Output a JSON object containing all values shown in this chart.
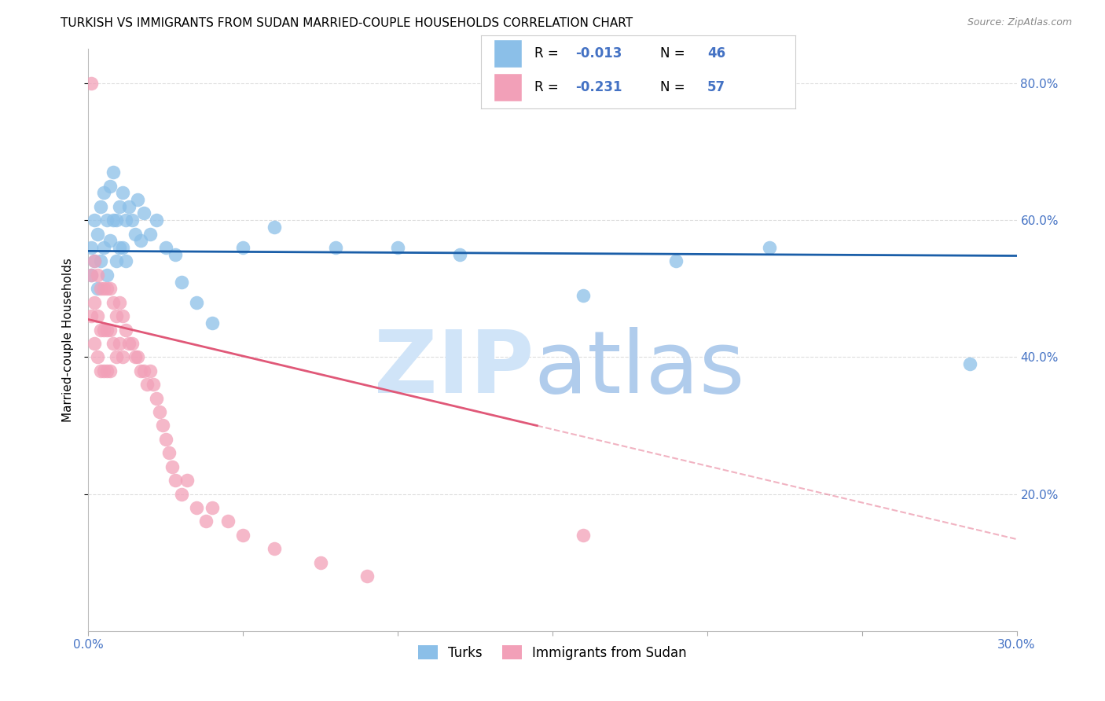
{
  "title": "TURKISH VS IMMIGRANTS FROM SUDAN MARRIED-COUPLE HOUSEHOLDS CORRELATION CHART",
  "source": "Source: ZipAtlas.com",
  "ylabel": "Married-couple Households",
  "legend_r": [
    -0.013,
    -0.231
  ],
  "legend_n": [
    46,
    57
  ],
  "color_turks": "#8BBFE8",
  "color_sudan": "#F2A0B8",
  "trendline_turks": "#1A5EA8",
  "trendline_sudan": "#E05878",
  "xlim": [
    0.0,
    0.3
  ],
  "ylim": [
    0.0,
    0.85
  ],
  "xticks": [
    0.0,
    0.05,
    0.1,
    0.15,
    0.2,
    0.25,
    0.3
  ],
  "yticks_right": [
    0.2,
    0.4,
    0.6,
    0.8
  ],
  "ytick_right_labels": [
    "20.0%",
    "40.0%",
    "60.0%",
    "80.0%"
  ],
  "turks_x": [
    0.001,
    0.001,
    0.002,
    0.002,
    0.003,
    0.003,
    0.004,
    0.004,
    0.005,
    0.005,
    0.006,
    0.006,
    0.007,
    0.007,
    0.008,
    0.008,
    0.009,
    0.009,
    0.01,
    0.01,
    0.011,
    0.011,
    0.012,
    0.012,
    0.013,
    0.014,
    0.015,
    0.016,
    0.017,
    0.018,
    0.02,
    0.022,
    0.025,
    0.028,
    0.03,
    0.035,
    0.04,
    0.05,
    0.06,
    0.08,
    0.1,
    0.12,
    0.16,
    0.19,
    0.22,
    0.285
  ],
  "turks_y": [
    0.56,
    0.52,
    0.6,
    0.54,
    0.58,
    0.5,
    0.62,
    0.54,
    0.64,
    0.56,
    0.6,
    0.52,
    0.65,
    0.57,
    0.67,
    0.6,
    0.6,
    0.54,
    0.62,
    0.56,
    0.64,
    0.56,
    0.6,
    0.54,
    0.62,
    0.6,
    0.58,
    0.63,
    0.57,
    0.61,
    0.58,
    0.6,
    0.56,
    0.55,
    0.51,
    0.48,
    0.45,
    0.56,
    0.59,
    0.56,
    0.56,
    0.55,
    0.49,
    0.54,
    0.56,
    0.39
  ],
  "sudan_x": [
    0.001,
    0.001,
    0.001,
    0.002,
    0.002,
    0.002,
    0.003,
    0.003,
    0.003,
    0.004,
    0.004,
    0.004,
    0.005,
    0.005,
    0.005,
    0.006,
    0.006,
    0.006,
    0.007,
    0.007,
    0.007,
    0.008,
    0.008,
    0.009,
    0.009,
    0.01,
    0.01,
    0.011,
    0.011,
    0.012,
    0.013,
    0.014,
    0.015,
    0.016,
    0.017,
    0.018,
    0.019,
    0.02,
    0.021,
    0.022,
    0.023,
    0.024,
    0.025,
    0.026,
    0.027,
    0.028,
    0.03,
    0.032,
    0.035,
    0.038,
    0.04,
    0.045,
    0.05,
    0.06,
    0.075,
    0.09,
    0.16
  ],
  "sudan_y": [
    0.8,
    0.52,
    0.46,
    0.54,
    0.48,
    0.42,
    0.52,
    0.46,
    0.4,
    0.5,
    0.44,
    0.38,
    0.5,
    0.44,
    0.38,
    0.5,
    0.44,
    0.38,
    0.5,
    0.44,
    0.38,
    0.48,
    0.42,
    0.46,
    0.4,
    0.48,
    0.42,
    0.46,
    0.4,
    0.44,
    0.42,
    0.42,
    0.4,
    0.4,
    0.38,
    0.38,
    0.36,
    0.38,
    0.36,
    0.34,
    0.32,
    0.3,
    0.28,
    0.26,
    0.24,
    0.22,
    0.2,
    0.22,
    0.18,
    0.16,
    0.18,
    0.16,
    0.14,
    0.12,
    0.1,
    0.08,
    0.14
  ],
  "background_color": "#FFFFFF",
  "grid_color": "#DDDDDD",
  "title_fontsize": 11,
  "axis_label_fontsize": 11,
  "tick_fontsize": 11,
  "right_tick_color": "#4472C4",
  "zip_color": "#C8D8F0",
  "atlas_color": "#A8C0DC"
}
